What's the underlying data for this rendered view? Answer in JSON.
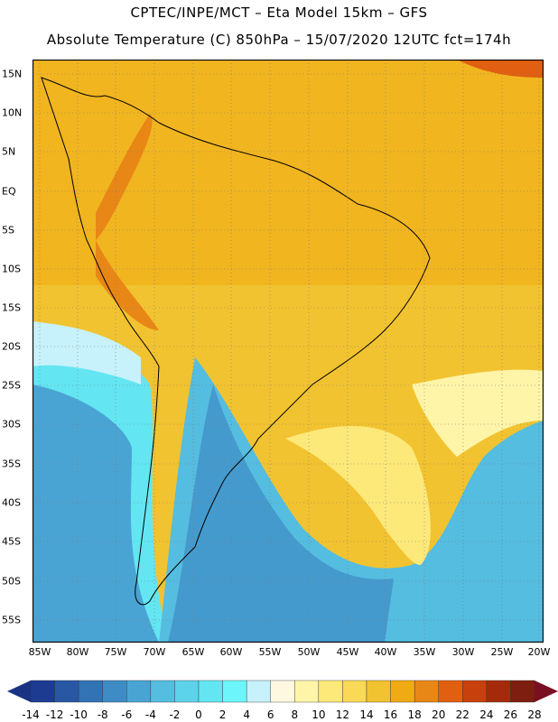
{
  "header": {
    "line1": "CPTEC/INPE/MCT –  Eta Model 15km – GFS",
    "line2": "Absolute Temperature (C) 850hPa – 15/07/2020 12UTC fct=174h"
  },
  "map": {
    "lat_labels": [
      "15N",
      "10N",
      "5N",
      "EQ",
      "5S",
      "10S",
      "15S",
      "20S",
      "25S",
      "30S",
      "35S",
      "40S",
      "45S",
      "50S",
      "55S"
    ],
    "lon_labels": [
      "85W",
      "80W",
      "75W",
      "70W",
      "65W",
      "60W",
      "55W",
      "50W",
      "45W",
      "40W",
      "35W",
      "30W",
      "25W",
      "20W"
    ],
    "frame_color": "#000000",
    "grid": "dotted"
  },
  "colorbar": {
    "labels": [
      "-14",
      "-12",
      "-10",
      "-8",
      "-6",
      "-4",
      "-2",
      "0",
      "2",
      "4",
      "6",
      "8",
      "10",
      "12",
      "14",
      "16",
      "18",
      "20",
      "22",
      "24",
      "26",
      "28"
    ],
    "colors": [
      "#1d3c91",
      "#2957a4",
      "#3273b5",
      "#3e8cc5",
      "#4aa4d3",
      "#55bde0",
      "#5dd3ea",
      "#63e6f2",
      "#6cf6fb",
      "#c7f1fb",
      "#fff8e1",
      "#fff5a8",
      "#fde97a",
      "#f9d955",
      "#f2c330",
      "#f0aa14",
      "#e88716",
      "#e05f10",
      "#c8400c",
      "#a52a0c",
      "#7d1e10"
    ],
    "low_arrow_color": "#1a3383",
    "high_arrow_color": "#7a0f22"
  }
}
